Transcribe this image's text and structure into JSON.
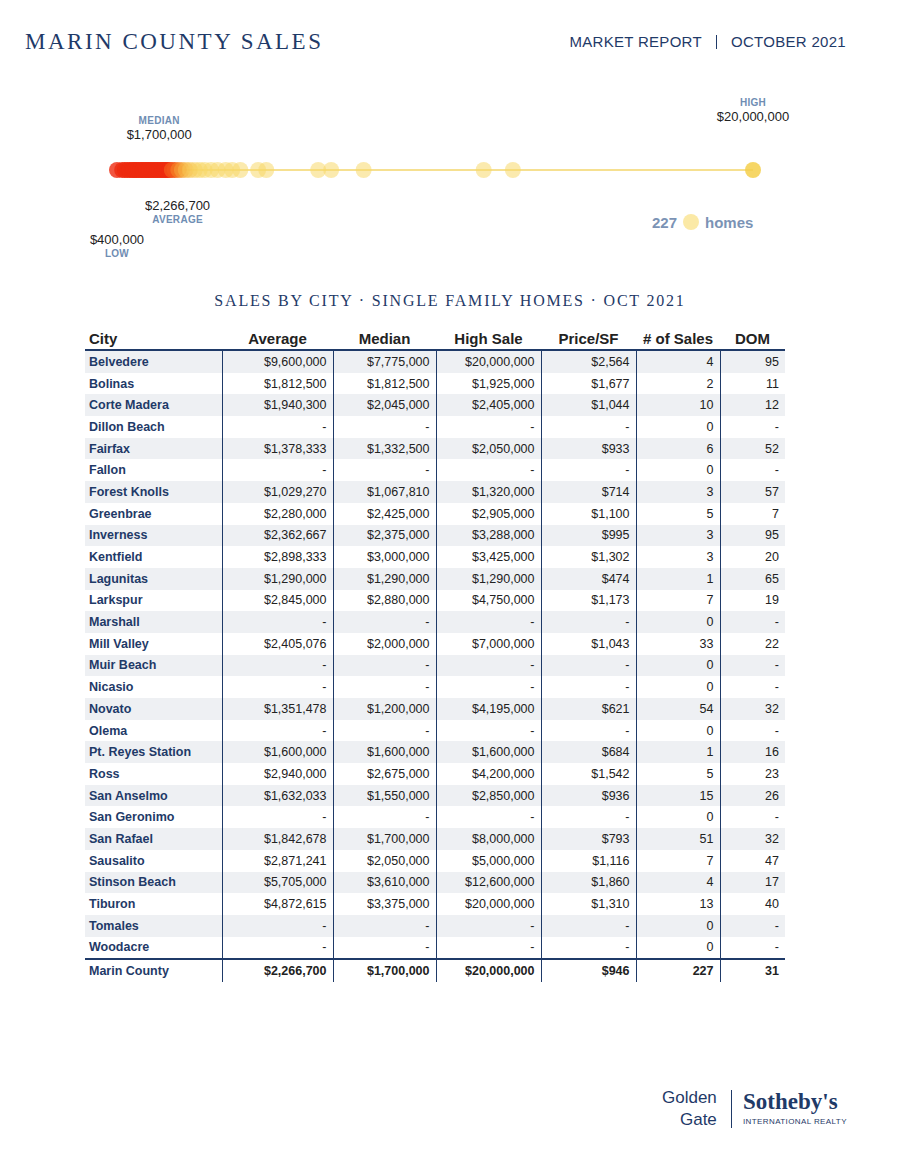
{
  "header": {
    "title": "MARIN COUNTY SALES",
    "report": "MARKET REPORT",
    "date": "OCTOBER 2021"
  },
  "chart_data": {
    "type": "scatter",
    "x": [
      400000,
      560000,
      640000,
      720000,
      790000,
      860000,
      910000,
      960000,
      1010000,
      1060000,
      1120000,
      1170000,
      1210000,
      1260000,
      1310000,
      1360000,
      1400000,
      1450000,
      1500000,
      1560000,
      1610000,
      1650000,
      1700000,
      1760000,
      1810000,
      1860000,
      1900000,
      1960000,
      2010000,
      2090000,
      2180000,
      2290000,
      2400000,
      2520000,
      2650000,
      2800000,
      2950000,
      3100000,
      3300000,
      3500000,
      3750000,
      3950000,
      4200000,
      4750000,
      5000000,
      6600000,
      7000000,
      8000000,
      11700000,
      12600000,
      20000000
    ],
    "colors": [
      "#ee2a0fcc",
      "#ee2a0fcc",
      "#ee2a0fcc",
      "#ee2a0fcc",
      "#ee2a0fcc",
      "#ee2a0fcc",
      "#ee2a0fcc",
      "#ee2a0fcc",
      "#ee2a0fcc",
      "#ee2a0fcc",
      "#ee2a0fcc",
      "#ee2a0fcc",
      "#ee2a0fcc",
      "#ee2a0fcc",
      "#ee2a0fcc",
      "#ee2a0fcc",
      "#ee2a0fcc",
      "#ee2a0fcc",
      "#ee2a0fcc",
      "#ee2a0fcc",
      "#ee2a0fcc",
      "#ee2a0fcc",
      "#ee2a0fcc",
      "#ee2a0fcc",
      "#ee2a0fcc",
      "#ee2a0fcc",
      "#ee2a0fcc",
      "#ee2a0fcc",
      "#ee2a0fcc",
      "#f2561acc",
      "#f2561acc",
      "#f47d25bb",
      "#f59a35aa",
      "#f7b54599",
      "#f7c35099",
      "#f8cd5a88",
      "#f8d46088",
      "#f8d86888",
      "#f8d86888",
      "#f8d86888",
      "#f8d86888",
      "#f8d86888",
      "#f8d86888",
      "#f8d86888",
      "#f8d86888",
      "#f8d86888",
      "#f8d86888",
      "#f8d86888",
      "#f8d86888",
      "#f8d86888",
      "#f5d04fdd"
    ],
    "xlim": [
      400000,
      20000000
    ],
    "tick_labels": false,
    "annotations": [
      {
        "text": "MEDIAN",
        "value": 1700000,
        "label": "$1,700,000"
      },
      {
        "text": "HIGH",
        "value": 20000000,
        "label": "$20,000,000"
      },
      {
        "text": "AVERAGE",
        "value": 2266700,
        "label": "$2,266,700"
      },
      {
        "text": "LOW",
        "value": 400000,
        "label": "$400,000"
      }
    ],
    "count": {
      "value": 227,
      "label": "homes"
    }
  },
  "table": {
    "title": "SALES BY CITY · SINGLE FAMILY HOMES · OCT 2021",
    "columns": [
      "City",
      "Average",
      "Median",
      "High Sale",
      "Price/SF",
      "# of Sales",
      "DOM"
    ],
    "rows": [
      [
        "Belvedere",
        "$9,600,000",
        "$7,775,000",
        "$20,000,000",
        "$2,564",
        "4",
        "95"
      ],
      [
        "Bolinas",
        "$1,812,500",
        "$1,812,500",
        "$1,925,000",
        "$1,677",
        "2",
        "11"
      ],
      [
        "Corte Madera",
        "$1,940,300",
        "$2,045,000",
        "$2,405,000",
        "$1,044",
        "10",
        "12"
      ],
      [
        "Dillon Beach",
        "-",
        "-",
        "-",
        "-",
        "0",
        "-"
      ],
      [
        "Fairfax",
        "$1,378,333",
        "$1,332,500",
        "$2,050,000",
        "$933",
        "6",
        "52"
      ],
      [
        "Fallon",
        "-",
        "-",
        "-",
        "-",
        "0",
        "-"
      ],
      [
        "Forest Knolls",
        "$1,029,270",
        "$1,067,810",
        "$1,320,000",
        "$714",
        "3",
        "57"
      ],
      [
        "Greenbrae",
        "$2,280,000",
        "$2,425,000",
        "$2,905,000",
        "$1,100",
        "5",
        "7"
      ],
      [
        "Inverness",
        "$2,362,667",
        "$2,375,000",
        "$3,288,000",
        "$995",
        "3",
        "95"
      ],
      [
        "Kentfield",
        "$2,898,333",
        "$3,000,000",
        "$3,425,000",
        "$1,302",
        "3",
        "20"
      ],
      [
        "Lagunitas",
        "$1,290,000",
        "$1,290,000",
        "$1,290,000",
        "$474",
        "1",
        "65"
      ],
      [
        "Larkspur",
        "$2,845,000",
        "$2,880,000",
        "$4,750,000",
        "$1,173",
        "7",
        "19"
      ],
      [
        "Marshall",
        "-",
        "-",
        "-",
        "-",
        "0",
        "-"
      ],
      [
        "Mill Valley",
        "$2,405,076",
        "$2,000,000",
        "$7,000,000",
        "$1,043",
        "33",
        "22"
      ],
      [
        "Muir Beach",
        "-",
        "-",
        "-",
        "-",
        "0",
        "-"
      ],
      [
        "Nicasio",
        "-",
        "-",
        "-",
        "-",
        "0",
        "-"
      ],
      [
        "Novato",
        "$1,351,478",
        "$1,200,000",
        "$4,195,000",
        "$621",
        "54",
        "32"
      ],
      [
        "Olema",
        "-",
        "-",
        "-",
        "-",
        "0",
        "-"
      ],
      [
        "Pt. Reyes Station",
        "$1,600,000",
        "$1,600,000",
        "$1,600,000",
        "$684",
        "1",
        "16"
      ],
      [
        "Ross",
        "$2,940,000",
        "$2,675,000",
        "$4,200,000",
        "$1,542",
        "5",
        "23"
      ],
      [
        "San Anselmo",
        "$1,632,033",
        "$1,550,000",
        "$2,850,000",
        "$936",
        "15",
        "26"
      ],
      [
        "San Geronimo",
        "-",
        "-",
        "-",
        "-",
        "0",
        "-"
      ],
      [
        "San Rafael",
        "$1,842,678",
        "$1,700,000",
        "$8,000,000",
        "$793",
        "51",
        "32"
      ],
      [
        "Sausalito",
        "$2,871,241",
        "$2,050,000",
        "$5,000,000",
        "$1,116",
        "7",
        "47"
      ],
      [
        "Stinson Beach",
        "$5,705,000",
        "$3,610,000",
        "$12,600,000",
        "$1,860",
        "4",
        "17"
      ],
      [
        "Tiburon",
        "$4,872,615",
        "$3,375,000",
        "$20,000,000",
        "$1,310",
        "13",
        "40"
      ],
      [
        "Tomales",
        "-",
        "-",
        "-",
        "-",
        "0",
        "-"
      ],
      [
        "Woodacre",
        "-",
        "-",
        "-",
        "-",
        "0",
        "-"
      ]
    ],
    "total": [
      "Marin County",
      "$2,266,700",
      "$1,700,000",
      "$20,000,000",
      "$946",
      "227",
      "31"
    ]
  },
  "footer": {
    "left": [
      "Golden",
      "Gate"
    ],
    "brand": "Sotheby's",
    "sub": "INTERNATIONAL REALTY"
  }
}
